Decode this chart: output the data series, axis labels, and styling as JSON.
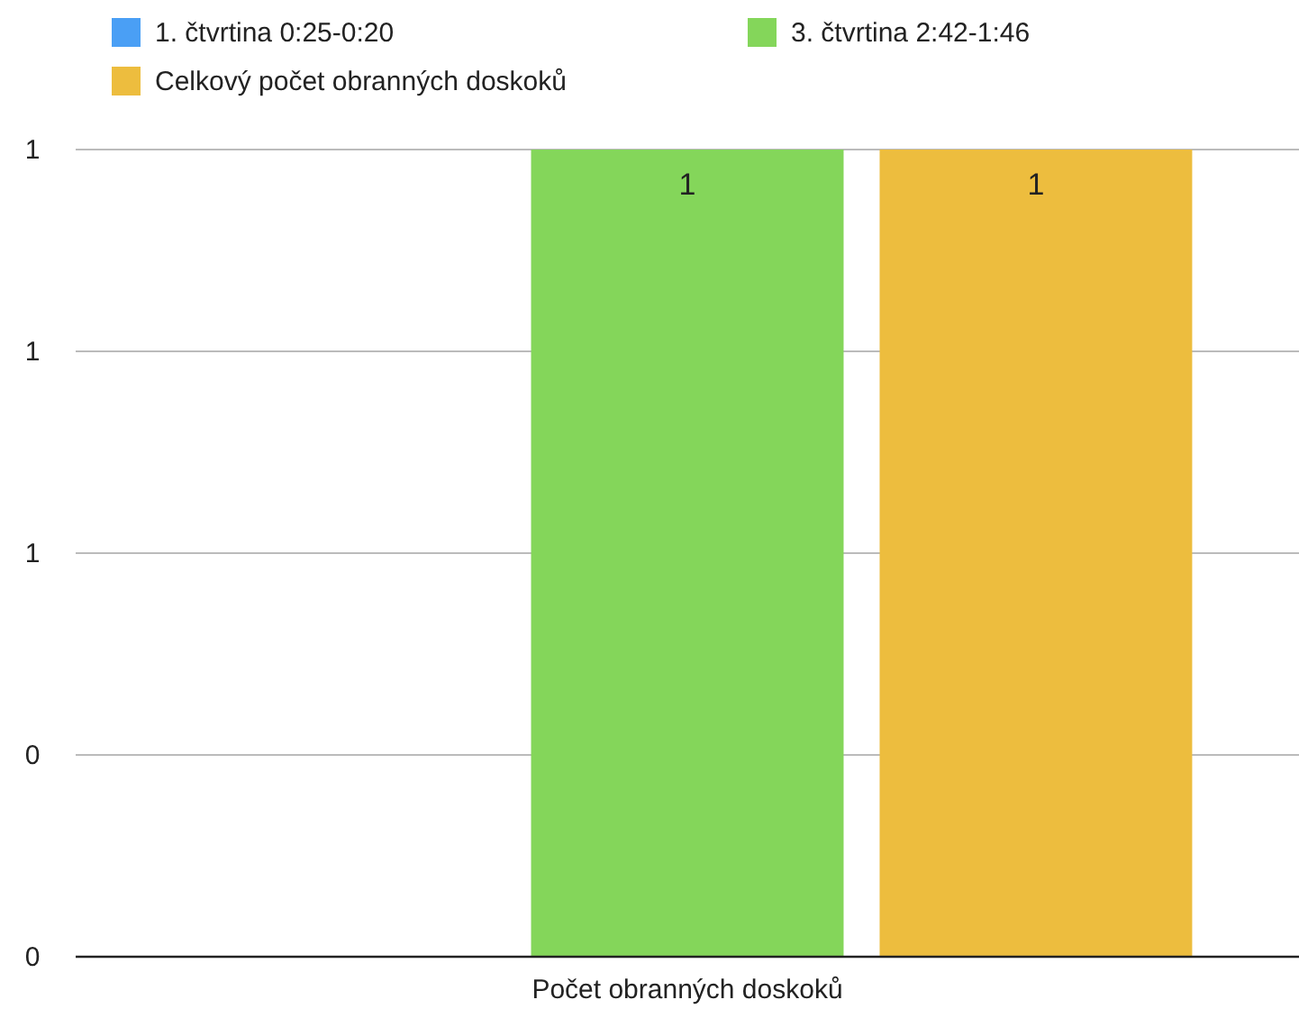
{
  "chart_data": {
    "type": "bar",
    "categories": [
      "Počet obranných doskoků"
    ],
    "series": [
      {
        "name": "1. čtvrtina 0:25-0:20",
        "color": "#4a9ff5",
        "values": [
          0
        ],
        "value_labels": [
          null
        ]
      },
      {
        "name": "3. čtvrtina 2:42-1:46",
        "color": "#84d65a",
        "values": [
          1
        ],
        "value_labels": [
          "1"
        ]
      },
      {
        "name": "Celkový počet obranných doskoků",
        "color": "#edbd3e",
        "values": [
          1
        ],
        "value_labels": [
          "1"
        ]
      }
    ],
    "ylim": [
      0,
      1
    ],
    "yticks": [
      0,
      {
        "value": 0.25,
        "label": "0"
      },
      {
        "value": 0.5,
        "label": "1"
      },
      {
        "value": 0.75,
        "label": "1"
      },
      1
    ],
    "grid": "y",
    "legend": "top left"
  }
}
